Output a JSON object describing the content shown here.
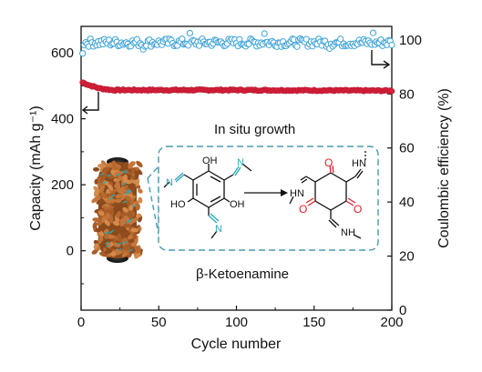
{
  "chart_data": {
    "type": "scatter",
    "xlabel": "Cycle number",
    "ylabel_left": "Capacity (mAh g⁻¹)",
    "ylabel_right": "Coulombic efficiency (%)",
    "xlim": [
      0,
      200
    ],
    "ylim_left": [
      -180,
      680
    ],
    "ylim_right": [
      0,
      105
    ],
    "x_ticks": [
      "0",
      "50",
      "100",
      "150",
      "200"
    ],
    "y_left_ticks": [
      "0",
      "200",
      "400",
      "600"
    ],
    "y_right_ticks": [
      "0",
      "20",
      "40",
      "60",
      "80",
      "100"
    ],
    "grid": false,
    "colors": {
      "capacity": "#d8203a",
      "efficiency": "#3fa3d8",
      "dashed_box": "#4a9bb0",
      "red_oxygen": "#e0202a",
      "cyan_nitrogen": "#2aa8b8",
      "rod_brown": "#b86a2e"
    },
    "series": [
      {
        "axis": "left",
        "marker": "filled-circle",
        "x_start": 1,
        "x_end": 200,
        "y_points": [
          [
            1,
            510
          ],
          [
            5,
            502
          ],
          [
            12,
            492
          ],
          [
            20,
            487
          ],
          [
            40,
            487
          ],
          [
            100,
            487
          ],
          [
            150,
            486
          ],
          [
            200,
            485
          ]
        ]
      },
      {
        "axis": "right",
        "marker": "open-circle",
        "x_start": 1,
        "x_end": 200,
        "y_first": 95,
        "y_mean": 99,
        "y_spread": 1.5,
        "outliers": [
          [
            40,
            96.5
          ],
          [
            70,
            102.5
          ],
          [
            118,
            102.3
          ],
          [
            160,
            96.8
          ],
          [
            188,
            102.6
          ]
        ]
      }
    ],
    "annotations": {
      "growth_label": "In situ growth",
      "molecule_label": "β-Ketoenamine",
      "left_atoms": [
        "OH",
        "OH",
        "HO",
        "N",
        "N",
        "N"
      ],
      "right_atoms": [
        "O",
        "O",
        "O",
        "HN",
        "HN",
        "NH"
      ]
    }
  }
}
